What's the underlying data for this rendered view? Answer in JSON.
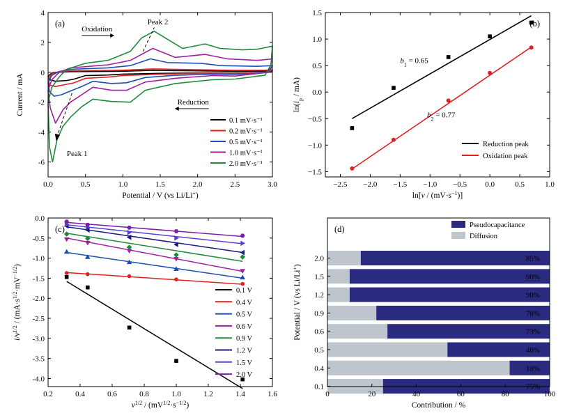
{
  "chart_data": [
    {
      "id": "a",
      "type": "line",
      "panel_label": "(a)",
      "xlabel": "Potential / V (vs Li/Li⁺)",
      "ylabel": "Current / mA",
      "xlim": [
        0,
        3.0
      ],
      "ylim": [
        -7,
        4
      ],
      "xticks": [
        0.0,
        0.5,
        1.0,
        1.5,
        2.0,
        2.5,
        3.0
      ],
      "xtick_labels": [
        "0.0",
        "0.5",
        "1.0",
        "1.5",
        "2.0",
        "2.5",
        "3.0"
      ],
      "yticks": [
        -6,
        -4,
        -2,
        0,
        2,
        4
      ],
      "ytick_labels": [
        "-6",
        "-4",
        "-2",
        "0",
        "2",
        "4"
      ],
      "legend_position": "bottom-right",
      "annotations": {
        "oxidation": "Oxidation",
        "reduction": "Reduction",
        "peak1": "Peak 1",
        "peak2": "Peak 2"
      },
      "series": [
        {
          "name": "0.1 mV·s⁻¹",
          "scan_rate": 0.1,
          "color": "#000000",
          "upper": [
            [
              0,
              -0.25
            ],
            [
              0.05,
              -0.05
            ],
            [
              0.1,
              0
            ],
            [
              0.3,
              0.04
            ],
            [
              1.0,
              0.07
            ],
            [
              1.4,
              0.13
            ],
            [
              2.0,
              0.1
            ],
            [
              2.5,
              0.07
            ],
            [
              2.9,
              0.08
            ],
            [
              3.0,
              0.1
            ]
          ],
          "lower": [
            [
              3.0,
              0.1
            ],
            [
              2.95,
              0
            ],
            [
              2.5,
              -0.05
            ],
            [
              2.1,
              -0.04
            ],
            [
              1.5,
              -0.07
            ],
            [
              1.0,
              -0.12
            ],
            [
              0.8,
              -0.18
            ],
            [
              0.5,
              -0.22
            ],
            [
              0.35,
              -0.45
            ],
            [
              0.25,
              -0.55
            ],
            [
              0.1,
              -0.6
            ],
            [
              0.02,
              -0.5
            ],
            [
              0,
              -0.25
            ]
          ]
        },
        {
          "name": "0.2 mV·s⁻¹",
          "scan_rate": 0.2,
          "color": "#e02020",
          "upper": [
            [
              0,
              -0.45
            ],
            [
              0.05,
              -0.1
            ],
            [
              0.15,
              0.05
            ],
            [
              0.3,
              0.1
            ],
            [
              1.0,
              0.14
            ],
            [
              1.4,
              0.23
            ],
            [
              2.0,
              0.18
            ],
            [
              2.5,
              0.13
            ],
            [
              2.9,
              0.14
            ],
            [
              3.0,
              0.18
            ]
          ],
          "lower": [
            [
              3.0,
              0.18
            ],
            [
              2.95,
              0
            ],
            [
              2.5,
              -0.08
            ],
            [
              2.1,
              -0.06
            ],
            [
              1.5,
              -0.12
            ],
            [
              1.0,
              -0.22
            ],
            [
              0.8,
              -0.32
            ],
            [
              0.5,
              -0.4
            ],
            [
              0.35,
              -0.7
            ],
            [
              0.25,
              -0.8
            ],
            [
              0.1,
              -0.95
            ],
            [
              0.02,
              -0.85
            ],
            [
              0,
              -0.45
            ]
          ]
        },
        {
          "name": "0.5 mV·s⁻¹",
          "scan_rate": 0.5,
          "color": "#1a4fb0",
          "upper": [
            [
              0,
              -0.7
            ],
            [
              0.05,
              -0.2
            ],
            [
              0.15,
              0.05
            ],
            [
              0.3,
              0.2
            ],
            [
              0.8,
              0.3
            ],
            [
              1.1,
              0.45
            ],
            [
              1.37,
              0.9
            ],
            [
              1.6,
              0.65
            ],
            [
              2.05,
              0.6
            ],
            [
              2.3,
              0.45
            ],
            [
              2.8,
              0.4
            ],
            [
              3.0,
              0.45
            ]
          ],
          "lower": [
            [
              3.0,
              0.45
            ],
            [
              2.95,
              0
            ],
            [
              2.5,
              -0.15
            ],
            [
              2.2,
              -0.12
            ],
            [
              1.7,
              -0.2
            ],
            [
              1.3,
              -0.35
            ],
            [
              1.05,
              -0.7
            ],
            [
              0.85,
              -0.75
            ],
            [
              0.6,
              -0.6
            ],
            [
              0.45,
              -0.95
            ],
            [
              0.3,
              -1.25
            ],
            [
              0.18,
              -1.5
            ],
            [
              0.08,
              -1.6
            ],
            [
              0.02,
              -1.3
            ],
            [
              0,
              -0.7
            ]
          ]
        },
        {
          "name": "1.0 mV·s⁻¹",
          "scan_rate": 1.0,
          "color": "#a020a0",
          "upper": [
            [
              0,
              -1.2
            ],
            [
              0.05,
              -0.5
            ],
            [
              0.15,
              0
            ],
            [
              0.3,
              0.3
            ],
            [
              0.8,
              0.5
            ],
            [
              1.1,
              0.8
            ],
            [
              1.4,
              1.6
            ],
            [
              1.7,
              1.0
            ],
            [
              2.1,
              1.2
            ],
            [
              2.4,
              0.9
            ],
            [
              2.8,
              0.8
            ],
            [
              3.0,
              0.9
            ]
          ],
          "lower": [
            [
              3.0,
              0.9
            ],
            [
              2.95,
              0
            ],
            [
              2.5,
              -0.25
            ],
            [
              2.2,
              -0.22
            ],
            [
              1.7,
              -0.4
            ],
            [
              1.3,
              -0.65
            ],
            [
              1.05,
              -1.2
            ],
            [
              0.85,
              -1.2
            ],
            [
              0.6,
              -1.0
            ],
            [
              0.45,
              -1.5
            ],
            [
              0.3,
              -2.0
            ],
            [
              0.2,
              -2.5
            ],
            [
              0.1,
              -3.4
            ],
            [
              0.03,
              -2.4
            ],
            [
              0,
              -1.2
            ]
          ]
        },
        {
          "name": "2.0 mV·s⁻¹",
          "scan_rate": 2.0,
          "color": "#1f8a3a",
          "upper": [
            [
              0,
              -2.0
            ],
            [
              0.05,
              -1.0
            ],
            [
              0.15,
              -0.3
            ],
            [
              0.25,
              0.2
            ],
            [
              0.5,
              0.6
            ],
            [
              0.8,
              0.8
            ],
            [
              1.1,
              1.4
            ],
            [
              1.25,
              2.3
            ],
            [
              1.42,
              2.75
            ],
            [
              1.6,
              2.2
            ],
            [
              1.8,
              1.6
            ],
            [
              2.1,
              1.9
            ],
            [
              2.3,
              1.6
            ],
            [
              2.6,
              1.5
            ],
            [
              2.8,
              1.55
            ],
            [
              3.0,
              1.75
            ]
          ],
          "lower": [
            [
              3.0,
              1.75
            ],
            [
              2.98,
              0.5
            ],
            [
              2.9,
              -0.2
            ],
            [
              2.5,
              -0.45
            ],
            [
              2.2,
              -0.5
            ],
            [
              1.7,
              -0.75
            ],
            [
              1.3,
              -1.2
            ],
            [
              1.1,
              -2.0
            ],
            [
              0.85,
              -1.95
            ],
            [
              0.6,
              -1.8
            ],
            [
              0.45,
              -2.3
            ],
            [
              0.3,
              -3.0
            ],
            [
              0.2,
              -3.6
            ],
            [
              0.12,
              -4.5
            ],
            [
              0.06,
              -6.0
            ],
            [
              0.02,
              -5.0
            ],
            [
              0,
              -2.0
            ]
          ]
        }
      ]
    },
    {
      "id": "b",
      "type": "scatter",
      "panel_label": "(b)",
      "xlabel": "ln[v / (mV·s⁻¹)]",
      "ylabel": "ln(i_p / mA)",
      "xlim": [
        -2.75,
        1.0
      ],
      "ylim": [
        -1.6,
        1.5
      ],
      "xticks": [
        -2.5,
        -2.0,
        -1.5,
        -1.0,
        -0.5,
        0.0,
        0.5,
        1.0
      ],
      "xtick_labels": [
        "−2.5",
        "−2.0",
        "−1.5",
        "−1.0",
        "−0.5",
        "0.0",
        "0.5",
        "1.0"
      ],
      "yticks": [
        -1.5,
        -1.0,
        -0.5,
        0.0,
        0.5,
        1.0,
        1.5
      ],
      "ytick_labels": [
        "−1.5",
        "−1.0",
        "−0.5",
        "0.0",
        "0.5",
        "1.0",
        "1.5"
      ],
      "legend_position": "bottom-right",
      "annotations": {
        "b1": "b₁ = 0.65",
        "b2": "b₂ = 0.77"
      },
      "series": [
        {
          "name": "Reduction peak",
          "color": "#000000",
          "x": [
            -2.303,
            -1.609,
            -0.693,
            0.0,
            0.693
          ],
          "y": [
            -0.68,
            0.08,
            0.66,
            1.05,
            1.31
          ],
          "fit": [
            [
              -2.303,
              -0.5
            ],
            [
              0.693,
              1.44
            ]
          ]
        },
        {
          "name": "Oxidation peak",
          "color": "#e02020",
          "x": [
            -2.303,
            -1.609,
            -0.693,
            0.0,
            0.693
          ],
          "y": [
            -1.44,
            -0.9,
            -0.16,
            0.36,
            0.84
          ],
          "fit": [
            [
              -2.303,
              -1.45
            ],
            [
              0.693,
              0.85
            ]
          ]
        }
      ]
    },
    {
      "id": "c",
      "type": "scatter",
      "panel_label": "(c)",
      "xlabel": "v^1/2 / (mV^1/2·s^−1/2)",
      "ylabel": "i/v^1/2 / (mA·s^1/2·mV^−1/2)",
      "xlim": [
        0.2,
        1.6
      ],
      "ylim": [
        -4.2,
        0.0
      ],
      "xticks": [
        0.2,
        0.4,
        0.6,
        0.8,
        1.0,
        1.2,
        1.4,
        1.6
      ],
      "xtick_labels": [
        "0.2",
        "0.4",
        "0.6",
        "0.8",
        "1.0",
        "1.2",
        "1.4",
        "1.6"
      ],
      "yticks": [
        -4.0,
        -3.5,
        -3.0,
        -2.5,
        -2.0,
        -1.5,
        -1.0,
        -0.5,
        0.0
      ],
      "ytick_labels": [
        "-4.0",
        "-3.5",
        "-3.0",
        "-2.5",
        "-2.0",
        "-1.5",
        "-1.0",
        "-0.5",
        "0.0"
      ],
      "legend_position": "right",
      "x": [
        0.316,
        0.447,
        0.707,
        1.0,
        1.414
      ],
      "series": [
        {
          "name": "0.1 V",
          "color": "#000000",
          "marker": "square",
          "y": [
            -1.47,
            -1.73,
            -2.73,
            -3.56,
            -4.02
          ],
          "fit": [
            [
              0.316,
              -1.58
            ],
            [
              1.414,
              -4.25
            ]
          ]
        },
        {
          "name": "0.4 V",
          "color": "#e02020",
          "marker": "circle",
          "y": [
            -1.37,
            -1.4,
            -1.45,
            -1.53,
            -1.64
          ],
          "fit": [
            [
              0.316,
              -1.36
            ],
            [
              1.414,
              -1.65
            ]
          ]
        },
        {
          "name": "0.5 V",
          "color": "#1a4fb0",
          "marker": "triangle-up",
          "y": [
            -0.84,
            -0.97,
            -1.1,
            -1.27,
            -1.48
          ],
          "fit": [
            [
              0.316,
              -0.86
            ],
            [
              1.414,
              -1.5
            ]
          ]
        },
        {
          "name": "0.6 V",
          "color": "#a020a0",
          "marker": "triangle-down",
          "y": [
            -0.53,
            -0.62,
            -0.82,
            -1.02,
            -1.32
          ],
          "fit": [
            [
              0.316,
              -0.5
            ],
            [
              1.414,
              -1.33
            ]
          ]
        },
        {
          "name": "0.9 V",
          "color": "#1f8a3a",
          "marker": "diamond",
          "y": [
            -0.4,
            -0.51,
            -0.73,
            -0.92,
            -0.97
          ],
          "fit": [
            [
              0.316,
              -0.38
            ],
            [
              1.414,
              -1.08
            ]
          ]
        },
        {
          "name": "1.2 V",
          "color": "#1a1a80",
          "marker": "triangle-left",
          "y": [
            -0.2,
            -0.3,
            -0.48,
            -0.66,
            -0.86
          ],
          "fit": [
            [
              0.316,
              -0.22
            ],
            [
              1.414,
              -0.86
            ]
          ]
        },
        {
          "name": "1.5 V",
          "color": "#5b3fd0",
          "marker": "triangle-right",
          "y": [
            -0.16,
            -0.23,
            -0.36,
            -0.5,
            -0.63
          ],
          "fit": [
            [
              0.316,
              -0.17
            ],
            [
              1.414,
              -0.64
            ]
          ]
        },
        {
          "name": "2.0 V",
          "color": "#7b1fa2",
          "marker": "hexagon",
          "y": [
            -0.09,
            -0.17,
            -0.24,
            -0.33,
            -0.44
          ],
          "fit": [
            [
              0.316,
              -0.11
            ],
            [
              1.414,
              -0.46
            ]
          ]
        }
      ]
    },
    {
      "id": "d",
      "type": "bar",
      "orientation": "horizontal-stacked",
      "panel_label": "(d)",
      "xlabel": "Contribution / %",
      "ylabel": "Potential / V (vs Li/Li⁺)",
      "xlim": [
        0,
        100
      ],
      "xticks": [
        0,
        20,
        40,
        60,
        80,
        100
      ],
      "xtick_labels": [
        "0",
        "20",
        "40",
        "60",
        "80",
        "100"
      ],
      "legend_position": "top",
      "categories": [
        "2.0",
        "1.5",
        "1.2",
        "0.9",
        "0.6",
        "0.5",
        "0.4",
        "0.1"
      ],
      "series": [
        {
          "name": "Diffusion",
          "color": "#bfc5cc",
          "values": [
            15,
            10,
            10,
            22,
            27,
            54,
            82,
            25
          ]
        },
        {
          "name": "Pseudocapacitance",
          "color": "#2a2a7e",
          "values": [
            85,
            90,
            90,
            78,
            73,
            46,
            18,
            75
          ]
        }
      ],
      "bar_labels": [
        "85%",
        "90%",
        "90%",
        "78%",
        "73%",
        "46%",
        "18%",
        "75%"
      ]
    }
  ]
}
